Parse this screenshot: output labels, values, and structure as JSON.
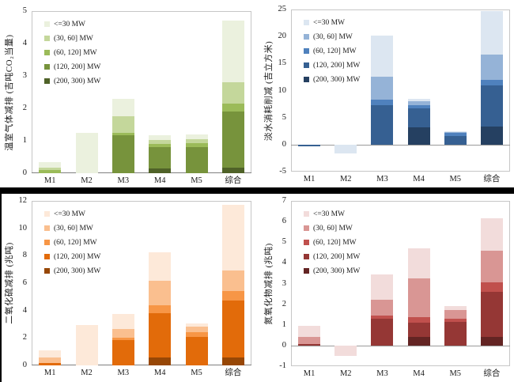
{
  "figure": {
    "categories": [
      "M1",
      "M2",
      "M3",
      "M4",
      "M5",
      "综合"
    ],
    "legend_labels": [
      "<=30 MW",
      "(30, 60] MW",
      "(60, 120] MW",
      "(120, 200] MW",
      "(200, 300) MW"
    ]
  },
  "chart_data": [
    {
      "id": "greenhouse-gas",
      "type": "bar",
      "stacked": true,
      "title": "",
      "xlabel": "",
      "ylabel": "温室气体减排 (吉吨CO₂当量)",
      "ylim": [
        0,
        5
      ],
      "yticks": [
        0,
        1,
        2,
        3,
        4,
        5
      ],
      "grid": false,
      "legend_position": "top-left-inside",
      "categories": [
        "M1",
        "M2",
        "M3",
        "M4",
        "M5",
        "综合"
      ],
      "palette": [
        "#EBF1DE",
        "#C4D79B",
        "#9BBB59",
        "#77933C",
        "#4F6228"
      ],
      "series": [
        {
          "name": "<=30 MW",
          "values": [
            0.15,
            1.25,
            0.55,
            0.15,
            0.15,
            1.9
          ]
        },
        {
          "name": "(30, 60] MW",
          "values": [
            0.08,
            0,
            0.5,
            0.12,
            0.11,
            0.65
          ]
        },
        {
          "name": "(60, 120] MW",
          "values": [
            0.1,
            0,
            0.08,
            0.1,
            0.13,
            0.25
          ]
        },
        {
          "name": "(120, 200] MW",
          "values": [
            0,
            0,
            1.17,
            0.65,
            0.8,
            1.73
          ]
        },
        {
          "name": "(200, 300) MW",
          "values": [
            0,
            0,
            0,
            0.15,
            0,
            0.17
          ]
        }
      ]
    },
    {
      "id": "freshwater",
      "type": "bar",
      "stacked": true,
      "title": "",
      "xlabel": "",
      "ylabel": "淡水消耗削减 (吉立方米)",
      "ylim": [
        -5,
        25
      ],
      "yticks": [
        -5,
        0,
        5,
        10,
        15,
        20,
        25
      ],
      "grid": false,
      "legend_position": "top-left-inside",
      "categories": [
        "M1",
        "M2",
        "M3",
        "M4",
        "M5",
        "综合"
      ],
      "palette": [
        "#DCE6F1",
        "#95B3D7",
        "#4F81BD",
        "#366092",
        "#254061"
      ],
      "series": [
        {
          "name": "<=30 MW",
          "values": [
            0,
            -1.7,
            7.7,
            0.4,
            0.1,
            8.1
          ]
        },
        {
          "name": "(30, 60] MW",
          "values": [
            0,
            0,
            4.2,
            0.7,
            0.15,
            4.6
          ]
        },
        {
          "name": "(60, 120] MW",
          "values": [
            0,
            0,
            1.0,
            0.6,
            0.6,
            1.1
          ]
        },
        {
          "name": "(120, 200] MW",
          "values": [
            -0.3,
            0,
            7.3,
            3.5,
            1.6,
            7.6
          ]
        },
        {
          "name": "(200, 300) MW",
          "values": [
            0,
            0,
            0,
            3.2,
            0,
            3.3
          ]
        }
      ]
    },
    {
      "id": "sulfur-dioxide",
      "type": "bar",
      "stacked": true,
      "title": "",
      "xlabel": "",
      "ylabel": "二氧化硫减排 (兆吨)",
      "ylim": [
        0,
        12
      ],
      "yticks": [
        0,
        2,
        4,
        6,
        8,
        10,
        12
      ],
      "grid": false,
      "legend_position": "top-left-inside",
      "categories": [
        "M1",
        "M2",
        "M3",
        "M4",
        "M5",
        "综合"
      ],
      "palette": [
        "#FDE9D9",
        "#FABF8F",
        "#F79646",
        "#E26B0A",
        "#974706"
      ],
      "series": [
        {
          "name": "<=30 MW",
          "values": [
            0.55,
            2.95,
            1.1,
            2.1,
            0.25,
            4.8
          ]
        },
        {
          "name": "(30, 60] MW",
          "values": [
            0.4,
            0,
            0.65,
            1.75,
            0.35,
            1.45
          ]
        },
        {
          "name": "(60, 120] MW",
          "values": [
            0,
            0,
            0.15,
            0.6,
            0.4,
            0.7
          ]
        },
        {
          "name": "(120, 200] MW",
          "values": [
            0.15,
            0,
            1.85,
            3.2,
            2.05,
            4.15
          ]
        },
        {
          "name": "(200, 300) MW",
          "values": [
            0,
            0,
            0,
            0.6,
            0,
            0.6
          ]
        }
      ]
    },
    {
      "id": "nitrogen-oxides",
      "type": "bar",
      "stacked": true,
      "title": "",
      "xlabel": "",
      "ylabel": "氮氧化物减排 (兆吨)",
      "ylim": [
        -1,
        7
      ],
      "yticks": [
        -1,
        0,
        1,
        2,
        3,
        4,
        5,
        6,
        7
      ],
      "grid": false,
      "legend_position": "top-left-inside",
      "categories": [
        "M1",
        "M2",
        "M3",
        "M4",
        "M5",
        "综合"
      ],
      "palette": [
        "#F2DCDB",
        "#D99694",
        "#C0504D",
        "#953735",
        "#632423"
      ],
      "series": [
        {
          "name": "<=30 MW",
          "values": [
            0.55,
            -0.5,
            1.25,
            1.45,
            0.2,
            1.55
          ]
        },
        {
          "name": "(30, 60] MW",
          "values": [
            0.35,
            0,
            0.75,
            1.88,
            0.4,
            1.55
          ]
        },
        {
          "name": "(60, 120] MW",
          "values": [
            0,
            0,
            0.15,
            0.28,
            0.15,
            0.45
          ]
        },
        {
          "name": "(120, 200] MW",
          "values": [
            0.07,
            0,
            1.3,
            0.7,
            1.15,
            2.2
          ]
        },
        {
          "name": "(200, 300) MW",
          "values": [
            0,
            0,
            0,
            0.4,
            0,
            0.4
          ]
        }
      ]
    }
  ]
}
